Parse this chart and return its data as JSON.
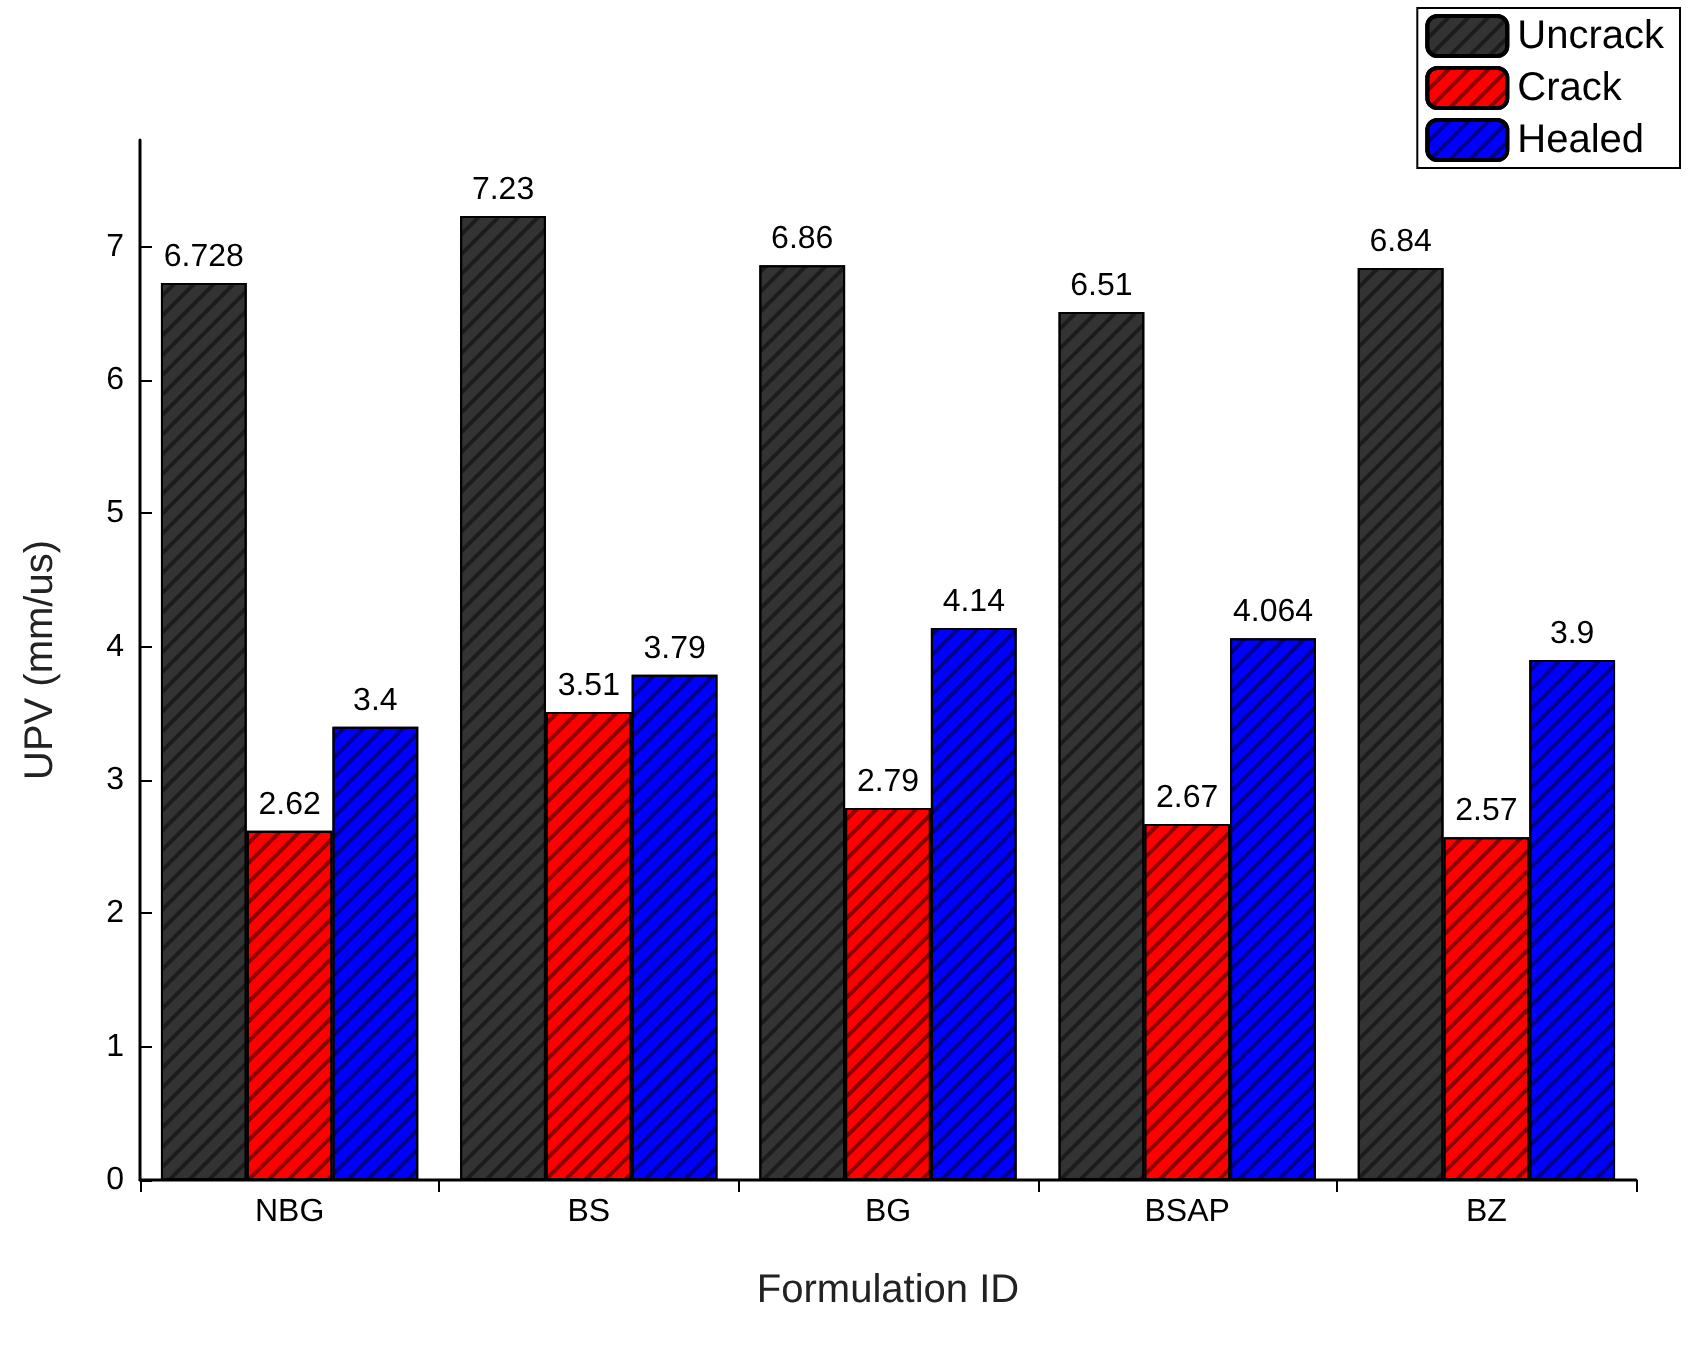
{
  "chart_data": {
    "type": "bar",
    "xlabel": "Formulation ID",
    "ylabel": "UPV (mm/us)",
    "categories": [
      "NBG",
      "BS",
      "BG",
      "BSAP",
      "BZ"
    ],
    "series": [
      {
        "name": "Uncrack",
        "color": "#333333",
        "values": [
          6.728,
          7.23,
          6.86,
          6.51,
          6.84
        ]
      },
      {
        "name": "Crack",
        "color": "#ff0000",
        "values": [
          2.62,
          3.51,
          2.79,
          2.67,
          2.57
        ]
      },
      {
        "name": "Healed",
        "color": "#0000ff",
        "values": [
          3.4,
          3.79,
          4.14,
          4.064,
          3.9
        ]
      }
    ],
    "ylim": [
      0,
      7.8
    ],
    "yticks": [
      0,
      1,
      2,
      3,
      4,
      5,
      6,
      7
    ],
    "data_labels": true,
    "grid": false,
    "legend": "top right"
  }
}
